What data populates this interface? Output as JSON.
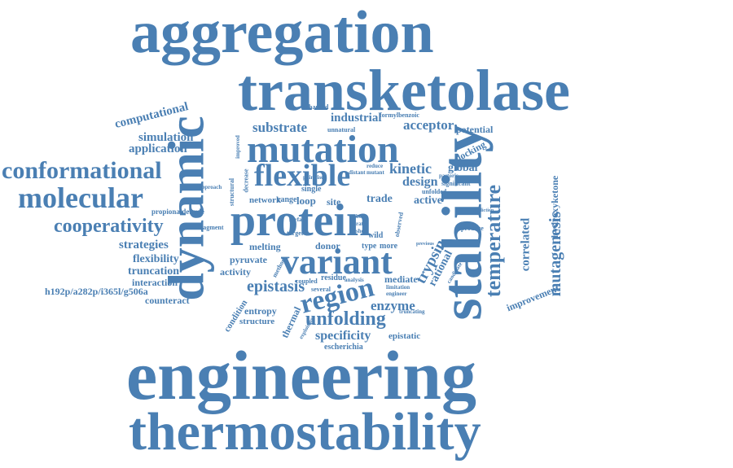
{
  "theme": {
    "word_color": "#4a7fb3",
    "background": "#ffffff"
  },
  "words": [
    {
      "text": "engineering",
      "orientation": "horizontal"
    },
    {
      "text": "thermostability",
      "orientation": "horizontal"
    },
    {
      "text": "transketolase",
      "orientation": "horizontal"
    },
    {
      "text": "aggregation",
      "orientation": "horizontal"
    },
    {
      "text": "stability",
      "orientation": "vertical"
    },
    {
      "text": "dynamic",
      "orientation": "vertical"
    },
    {
      "text": "protein",
      "orientation": "horizontal"
    },
    {
      "text": "mutation",
      "orientation": "horizontal"
    },
    {
      "text": "variant",
      "orientation": "horizontal"
    },
    {
      "text": "flexible",
      "orientation": "horizontal"
    },
    {
      "text": "conformational",
      "orientation": "horizontal"
    },
    {
      "text": "molecular",
      "orientation": "horizontal"
    },
    {
      "text": "temperature",
      "orientation": "vertical"
    },
    {
      "text": "cooperativity",
      "orientation": "horizontal"
    },
    {
      "text": "region",
      "orientation": "horizontal"
    },
    {
      "text": "unfolding",
      "orientation": "horizontal"
    },
    {
      "text": "epistasis",
      "orientation": "horizontal"
    },
    {
      "text": "specificity",
      "orientation": "horizontal"
    },
    {
      "text": "substrate",
      "orientation": "horizontal"
    },
    {
      "text": "enzyme",
      "orientation": "horizontal"
    },
    {
      "text": "mutagenesis",
      "orientation": "vertical"
    },
    {
      "text": "correlated",
      "orientation": "vertical"
    },
    {
      "text": "kinetic",
      "orientation": "horizontal"
    },
    {
      "text": "design",
      "orientation": "horizontal"
    },
    {
      "text": "acceptor",
      "orientation": "horizontal"
    },
    {
      "text": "industrial",
      "orientation": "horizontal"
    },
    {
      "text": "computational",
      "orientation": "horizontal"
    },
    {
      "text": "simulation",
      "orientation": "horizontal"
    },
    {
      "text": "application",
      "orientation": "horizontal"
    },
    {
      "text": "strategies",
      "orientation": "horizontal"
    },
    {
      "text": "flexibility",
      "orientation": "horizontal"
    },
    {
      "text": "truncation",
      "orientation": "horizontal"
    },
    {
      "text": "interaction",
      "orientation": "horizontal"
    },
    {
      "text": "h192p/a282p/i365l/g506a",
      "orientation": "horizontal"
    },
    {
      "text": "counteract",
      "orientation": "horizontal"
    },
    {
      "text": "trypsin",
      "orientation": "vertical"
    },
    {
      "text": "rational",
      "orientation": "vertical"
    },
    {
      "text": "hydroxyketone",
      "orientation": "vertical"
    },
    {
      "text": "improvement",
      "orientation": "horizontal"
    },
    {
      "text": "global",
      "orientation": "horizontal"
    },
    {
      "text": "docking",
      "orientation": "horizontal"
    },
    {
      "text": "potential",
      "orientation": "horizontal"
    },
    {
      "text": "active",
      "orientation": "horizontal"
    },
    {
      "text": "trade",
      "orientation": "horizontal"
    },
    {
      "text": "loop",
      "orientation": "horizontal"
    },
    {
      "text": "site",
      "orientation": "horizontal"
    },
    {
      "text": "network",
      "orientation": "horizontal"
    },
    {
      "text": "range",
      "orientation": "horizontal"
    },
    {
      "text": "single",
      "orientation": "horizontal"
    },
    {
      "text": "pyruvate",
      "orientation": "horizontal"
    },
    {
      "text": "activity",
      "orientation": "horizontal"
    },
    {
      "text": "melting",
      "orientation": "horizontal"
    },
    {
      "text": "donor",
      "orientation": "horizontal"
    },
    {
      "text": "wild",
      "orientation": "horizontal"
    },
    {
      "text": "type",
      "orientation": "horizontal"
    },
    {
      "text": "more",
      "orientation": "horizontal"
    },
    {
      "text": "mediate",
      "orientation": "horizontal"
    },
    {
      "text": "residue",
      "orientation": "horizontal"
    },
    {
      "text": "condition",
      "orientation": "horizontal"
    },
    {
      "text": "entropy",
      "orientation": "horizontal"
    },
    {
      "text": "structure",
      "orientation": "horizontal"
    },
    {
      "text": "thermal",
      "orientation": "horizontal"
    },
    {
      "text": "epistatic",
      "orientation": "horizontal"
    },
    {
      "text": "escherichia",
      "orientation": "horizontal"
    },
    {
      "text": "propionaldehyde",
      "orientation": "horizontal"
    },
    {
      "text": "fragment",
      "orientation": "horizontal"
    },
    {
      "text": "enhanced",
      "orientation": "horizontal"
    },
    {
      "text": "unnatural",
      "orientation": "horizontal"
    },
    {
      "text": "formylbenzoic",
      "orientation": "horizontal"
    },
    {
      "text": "significant",
      "orientation": "horizontal"
    },
    {
      "text": "pastoris",
      "orientation": "horizontal"
    },
    {
      "text": "unfolded",
      "orientation": "horizontal"
    },
    {
      "text": "reduce",
      "orientation": "horizontal"
    },
    {
      "text": "mutant",
      "orientation": "horizontal"
    },
    {
      "text": "distant",
      "orientation": "horizontal"
    },
    {
      "text": "pairwise",
      "orientation": "horizontal"
    },
    {
      "text": "improved",
      "orientation": "horizontal"
    },
    {
      "text": "decrease",
      "orientation": "horizontal"
    },
    {
      "text": "structural",
      "orientation": "horizontal"
    },
    {
      "text": "approach",
      "orientation": "horizontal"
    },
    {
      "text": "surface",
      "orientation": "horizontal"
    },
    {
      "text": "target",
      "orientation": "horizontal"
    },
    {
      "text": "method",
      "orientation": "horizontal"
    },
    {
      "text": "coupled",
      "orientation": "horizontal"
    },
    {
      "text": "several",
      "orientation": "horizontal"
    },
    {
      "text": "analysis",
      "orientation": "horizontal"
    },
    {
      "text": "limitation",
      "orientation": "horizontal"
    },
    {
      "text": "engineer",
      "orientation": "horizontal"
    },
    {
      "text": "truncating",
      "orientation": "horizontal"
    },
    {
      "text": "exploiting",
      "orientation": "horizontal"
    },
    {
      "text": "observed",
      "orientation": "horizontal"
    },
    {
      "text": "produce",
      "orientation": "horizontal"
    },
    {
      "text": "previous",
      "orientation": "horizontal"
    },
    {
      "text": "prediction",
      "orientation": "horizontal"
    },
    {
      "text": "candidate",
      "orientation": "horizontal"
    },
    {
      "text": "best",
      "orientation": "horizontal"
    },
    {
      "text": "rate",
      "orientation": "horizontal"
    },
    {
      "text": "short",
      "orientation": "horizontal"
    }
  ]
}
